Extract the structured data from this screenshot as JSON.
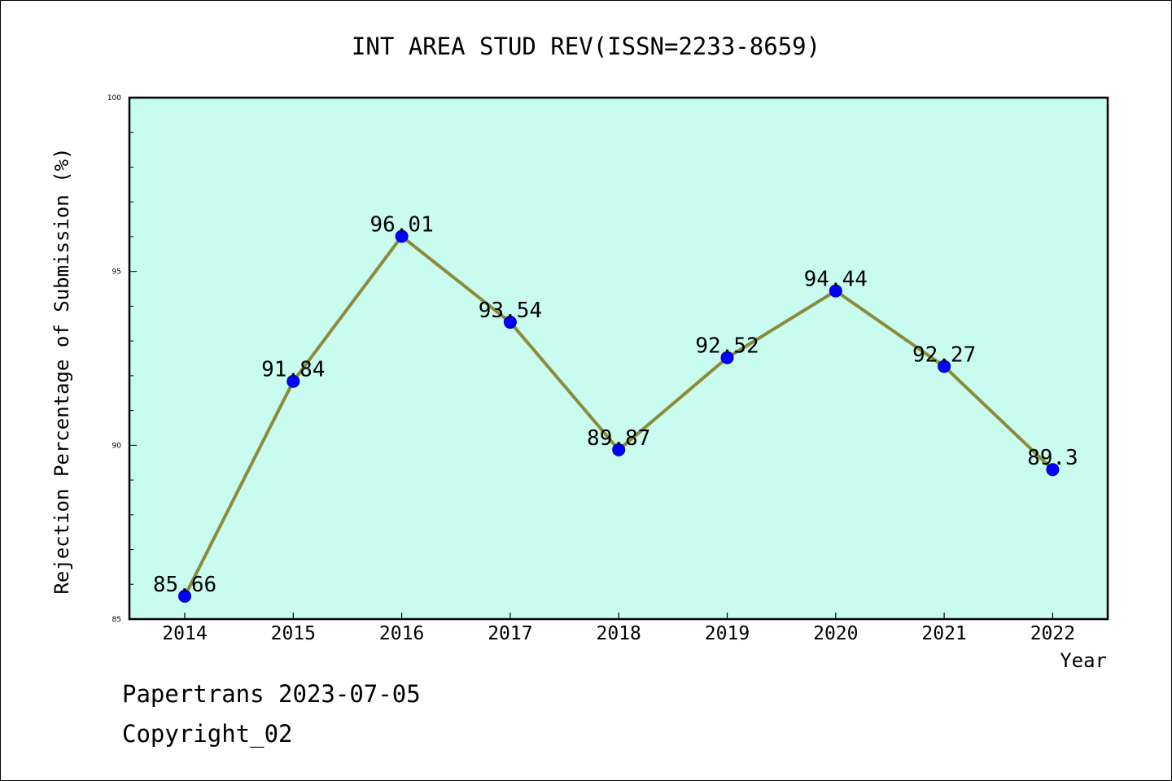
{
  "chart_data": {
    "type": "line",
    "title": "INT AREA STUD REV(ISSN=2233-8659)",
    "xlabel": "Year",
    "ylabel": "Rejection Percentage of Submission (%)",
    "categories": [
      "2014",
      "2015",
      "2016",
      "2017",
      "2018",
      "2019",
      "2020",
      "2021",
      "2022"
    ],
    "series": [
      {
        "values": [
          85.66,
          91.84,
          96.01,
          93.54,
          89.87,
          92.52,
          94.44,
          92.27,
          89.3
        ],
        "labels": [
          "85.66",
          "91.84",
          "96.01",
          "93.54",
          "89.87",
          "92.52",
          "94.44",
          "92.27",
          "89.3"
        ]
      }
    ],
    "ylim": [
      85,
      100
    ],
    "yticks": [
      85,
      90,
      95,
      100
    ],
    "yticks_minor_step": 1,
    "grid": false,
    "legend": "none",
    "colors": {
      "plot_background": "#c8fcee",
      "line": "#8b8b3a",
      "marker": "#0000ff"
    }
  },
  "footer": {
    "line1": "Papertrans 2023-07-05",
    "line2": "Copyright_02"
  }
}
